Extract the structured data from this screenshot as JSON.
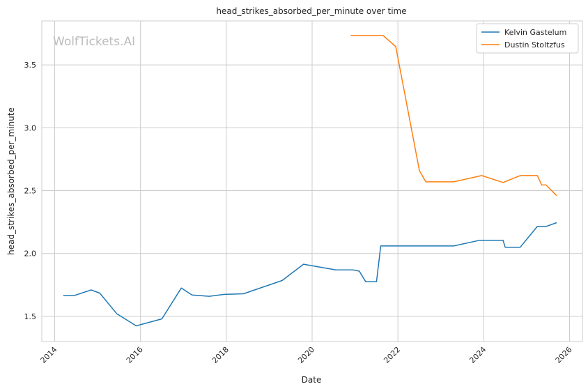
{
  "chart_data": {
    "type": "line",
    "title": "head_strikes_absorbed_per_minute over time",
    "xlabel": "Date",
    "ylabel": "head_strikes_absorbed_per_minute",
    "watermark": "WolfTickets.AI",
    "xlim": [
      2013.7,
      2026.3
    ],
    "ylim": [
      1.3,
      3.85
    ],
    "x_ticks": [
      2014,
      2016,
      2018,
      2020,
      2022,
      2024,
      2026
    ],
    "y_ticks": [
      1.5,
      2.0,
      2.5,
      3.0,
      3.5
    ],
    "x_tick_labels": [
      "2014",
      "2016",
      "2018",
      "2020",
      "2022",
      "2024",
      "2026"
    ],
    "y_tick_labels": [
      "1.5",
      "2.0",
      "2.5",
      "3.0",
      "3.5"
    ],
    "grid": true,
    "legend_position": "top-right",
    "series": [
      {
        "name": "Kelvin Gastelum",
        "color": "#1f77b4",
        "points": [
          [
            2014.2,
            1.665
          ],
          [
            2014.45,
            1.665
          ],
          [
            2014.85,
            1.71
          ],
          [
            2015.05,
            1.685
          ],
          [
            2015.45,
            1.52
          ],
          [
            2015.9,
            1.425
          ],
          [
            2016.5,
            1.48
          ],
          [
            2016.95,
            1.725
          ],
          [
            2017.2,
            1.67
          ],
          [
            2017.6,
            1.66
          ],
          [
            2017.95,
            1.675
          ],
          [
            2018.4,
            1.68
          ],
          [
            2019.3,
            1.785
          ],
          [
            2019.8,
            1.915
          ],
          [
            2020.55,
            1.87
          ],
          [
            2020.95,
            1.87
          ],
          [
            2021.1,
            1.86
          ],
          [
            2021.25,
            1.775
          ],
          [
            2021.5,
            1.775
          ],
          [
            2021.6,
            2.06
          ],
          [
            2022.7,
            2.06
          ],
          [
            2023.3,
            2.06
          ],
          [
            2023.9,
            2.105
          ],
          [
            2024.45,
            2.105
          ],
          [
            2024.5,
            2.05
          ],
          [
            2024.85,
            2.05
          ],
          [
            2025.25,
            2.215
          ],
          [
            2025.45,
            2.215
          ],
          [
            2025.7,
            2.245
          ]
        ]
      },
      {
        "name": "Dustin Stoltzfus",
        "color": "#ff7f0e",
        "points": [
          [
            2020.9,
            3.735
          ],
          [
            2021.15,
            3.735
          ],
          [
            2021.65,
            3.735
          ],
          [
            2021.95,
            3.645
          ],
          [
            2022.5,
            2.66
          ],
          [
            2022.65,
            2.57
          ],
          [
            2023.0,
            2.57
          ],
          [
            2023.3,
            2.57
          ],
          [
            2023.95,
            2.62
          ],
          [
            2024.45,
            2.565
          ],
          [
            2024.85,
            2.62
          ],
          [
            2025.25,
            2.62
          ],
          [
            2025.35,
            2.545
          ],
          [
            2025.45,
            2.545
          ],
          [
            2025.7,
            2.46
          ]
        ]
      }
    ]
  }
}
